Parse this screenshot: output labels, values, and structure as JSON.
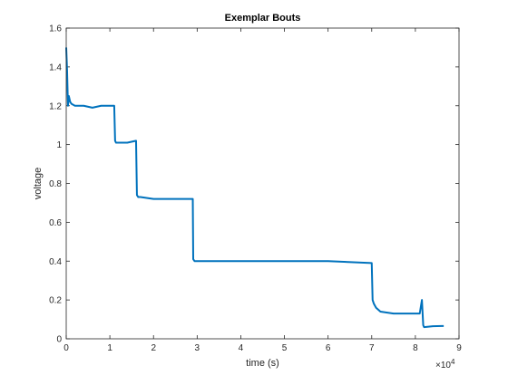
{
  "chart_data": {
    "type": "line",
    "title": "Exemplar Bouts",
    "xlabel": "time (s)",
    "ylabel": "voltage",
    "xlim": [
      0,
      9
    ],
    "ylim": [
      0,
      1.6
    ],
    "x_exponent_label": "×10",
    "x_exponent_power": "4",
    "x_ticks": [
      0,
      1,
      2,
      3,
      4,
      5,
      6,
      7,
      8,
      9
    ],
    "x_tick_labels": [
      "0",
      "1",
      "2",
      "3",
      "4",
      "5",
      "6",
      "7",
      "8",
      "9"
    ],
    "y_ticks": [
      0,
      0.2,
      0.4,
      0.6,
      0.8,
      1,
      1.2,
      1.4,
      1.6
    ],
    "y_tick_labels": [
      "0",
      "0.2",
      "0.4",
      "0.6",
      "0.8",
      "1",
      "1.2",
      "1.4",
      "1.6"
    ],
    "grid": false,
    "series": [
      {
        "color": "#0072bd",
        "x": [
          0,
          0.02,
          0.04,
          0.06,
          0.09,
          0.12,
          0.2,
          0.4,
          0.6,
          0.8,
          1.0,
          1.1,
          1.12,
          1.14,
          1.2,
          1.4,
          1.6,
          1.62,
          1.65,
          1.7,
          2.0,
          2.4,
          2.8,
          2.9,
          2.91,
          2.94,
          3.0,
          3.5,
          4.0,
          5.0,
          6.0,
          7.0,
          7.02,
          7.05,
          7.1,
          7.2,
          7.5,
          7.8,
          8.1,
          8.15,
          8.18,
          8.2,
          8.4,
          8.6,
          8.65
        ],
        "y": [
          1.5,
          1.38,
          1.2,
          1.25,
          1.22,
          1.21,
          1.2,
          1.2,
          1.19,
          1.2,
          1.2,
          1.2,
          1.02,
          1.01,
          1.01,
          1.01,
          1.02,
          0.74,
          0.73,
          0.73,
          0.72,
          0.72,
          0.72,
          0.72,
          0.41,
          0.4,
          0.4,
          0.4,
          0.4,
          0.4,
          0.4,
          0.39,
          0.2,
          0.18,
          0.16,
          0.14,
          0.13,
          0.13,
          0.13,
          0.2,
          0.07,
          0.06,
          0.065,
          0.066,
          0.066
        ]
      }
    ]
  }
}
